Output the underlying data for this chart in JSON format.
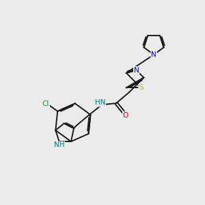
{
  "background_color": "#ebebeb",
  "bond_color": "#1a1a1a",
  "atom_colors": {
    "N": "#0000ee",
    "S": "#ccaa00",
    "O": "#ee0000",
    "Cl": "#00aa00",
    "NH": "#008080",
    "HN": "#008080",
    "C": "#1a1a1a"
  },
  "figsize": [
    3.0,
    3.0
  ],
  "dpi": 100
}
